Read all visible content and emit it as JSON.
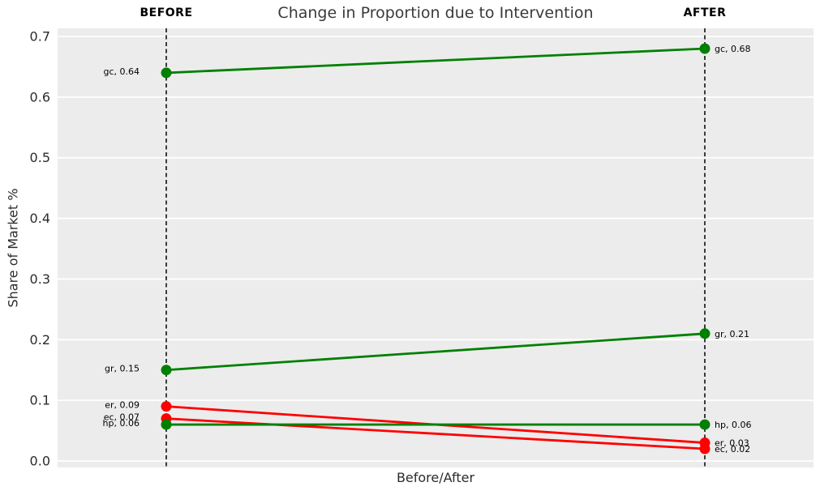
{
  "figure": {
    "title": "Change in Proportion due to Intervention",
    "xlabel": "Before/After",
    "ylabel": "Share of Market %",
    "column_headers": {
      "before": "BEFORE",
      "after": "AFTER"
    }
  },
  "chart_data": {
    "type": "line",
    "subtype": "slope-chart",
    "title": "Change in Proportion due to Intervention",
    "xlabel": "Before/After",
    "ylabel": "Share of Market %",
    "categories": [
      "BEFORE",
      "AFTER"
    ],
    "ylim": [
      0.0,
      0.7
    ],
    "yticks": [
      "0.0",
      "0.1",
      "0.2",
      "0.3",
      "0.4",
      "0.5",
      "0.6",
      "0.7"
    ],
    "grid": "horizontal white major gridlines on gray panel",
    "legend_position": "none",
    "column_guides": "black dashed vertical lines at BEFORE and AFTER",
    "series": [
      {
        "name": "gc",
        "values": [
          0.64,
          0.68
        ],
        "color": "#008000",
        "point_labels": [
          "gc, 0.64",
          "gc, 0.68"
        ]
      },
      {
        "name": "gr",
        "values": [
          0.15,
          0.21
        ],
        "color": "#008000",
        "point_labels": [
          "gr, 0.15",
          "gr, 0.21"
        ]
      },
      {
        "name": "er",
        "values": [
          0.09,
          0.03
        ],
        "color": "#ff0000",
        "point_labels": [
          "er, 0.09",
          "er, 0.03"
        ]
      },
      {
        "name": "ec",
        "values": [
          0.07,
          0.02
        ],
        "color": "#ff0000",
        "point_labels": [
          "ec, 0.07",
          "ec, 0.02"
        ]
      },
      {
        "name": "hp",
        "values": [
          0.06,
          0.06
        ],
        "color": "#008000",
        "point_labels": [
          "hp, 0.06",
          "hp, 0.06"
        ]
      }
    ],
    "colors": {
      "increase_or_stable_line": "#008000",
      "decrease_line": "#ff0000",
      "panel_background": "#ececec",
      "gridline": "#ffffff",
      "guide_line": "#000000",
      "title_text": "#3a3a3a",
      "tick_text": "#2b2b2b",
      "point_label_text": "#000000"
    }
  }
}
